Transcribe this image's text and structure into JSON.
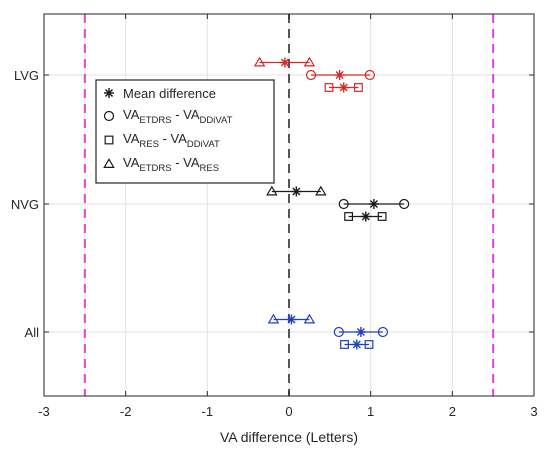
{
  "chart_data": {
    "type": "scatter",
    "xlabel": "VA difference (Letters)",
    "ylabel": "",
    "xlim": [
      -3,
      3
    ],
    "xticks": [
      -3,
      -2,
      -1,
      0,
      1,
      2,
      3
    ],
    "xtick_labels": [
      "-3",
      "-2",
      "-1",
      "0",
      "1",
      "2",
      "3"
    ],
    "categories": [
      "LVG",
      "NVG",
      "All"
    ],
    "grid": true,
    "legend_position": "top-left",
    "reference_lines": [
      {
        "x": 0,
        "style": "dashed",
        "color": "#555555"
      },
      {
        "x": -2.5,
        "style": "dashed",
        "color": "#e040e0"
      },
      {
        "x": 2.5,
        "style": "dashed",
        "color": "#e040e0"
      }
    ],
    "group_colors": {
      "LVG": "#d62728",
      "NVG": "#1a1a1a",
      "All": "#1f3fc4"
    },
    "legend": {
      "mean": "Mean difference",
      "entries": [
        {
          "marker": "circle",
          "base": "VA",
          "sub1": "ETDRS",
          "mid": " - VA",
          "sub2": "DDiVAT"
        },
        {
          "marker": "square",
          "base": "VA",
          "sub1": "RES",
          "mid": " - VA",
          "sub2": "DDiVAT"
        },
        {
          "marker": "triangle",
          "base": "VA",
          "sub1": "ETDRS",
          "mid": " - VA",
          "sub2": "RES"
        }
      ]
    },
    "series": [
      {
        "comparison": "ETDRS-DDiVAT",
        "marker": "circle",
        "offset": 0,
        "points": [
          {
            "group": "LVG",
            "low": 0.27,
            "mean": 0.62,
            "high": 0.99
          },
          {
            "group": "NVG",
            "low": 0.67,
            "mean": 1.04,
            "high": 1.41
          },
          {
            "group": "All",
            "low": 0.61,
            "mean": 0.88,
            "high": 1.15
          }
        ]
      },
      {
        "comparison": "RES-DDiVAT",
        "marker": "square",
        "offset": 1,
        "points": [
          {
            "group": "LVG",
            "low": 0.49,
            "mean": 0.67,
            "high": 0.85
          },
          {
            "group": "NVG",
            "low": 0.73,
            "mean": 0.94,
            "high": 1.14
          },
          {
            "group": "All",
            "low": 0.68,
            "mean": 0.83,
            "high": 0.98
          }
        ]
      },
      {
        "comparison": "ETDRS-RES",
        "marker": "triangle",
        "offset": -1,
        "points": [
          {
            "group": "LVG",
            "low": -0.36,
            "mean": -0.05,
            "high": 0.25
          },
          {
            "group": "NVG",
            "low": -0.21,
            "mean": 0.09,
            "high": 0.39
          },
          {
            "group": "All",
            "low": -0.19,
            "mean": 0.03,
            "high": 0.25
          }
        ]
      }
    ]
  }
}
